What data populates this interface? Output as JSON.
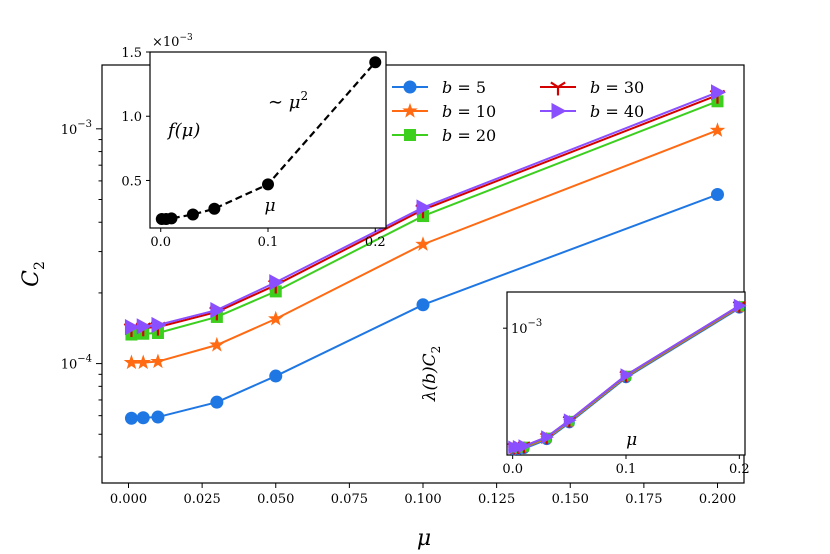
{
  "colors": {
    "b5": "#1f77e4",
    "b10": "#ff6a13",
    "b20": "#3ccf1e",
    "b30": "#d40000",
    "b40": "#8a4fff",
    "inset_curve": "#000000"
  },
  "chart_data": [
    {
      "type": "line",
      "id": "main",
      "yscale": "log",
      "xlabel": "μ",
      "ylabel": "C",
      "ylabel_sub": "2",
      "xlim": [
        -0.009,
        0.209
      ],
      "ylim": [
        3.1e-05,
        0.00187
      ],
      "xticks": [
        0.0,
        0.025,
        0.05,
        0.075,
        0.1,
        0.125,
        0.15,
        0.175,
        0.2
      ],
      "xtick_labels": [
        "0.000",
        "0.025",
        "0.050",
        "0.075",
        "0.100",
        "0.125",
        "0.150",
        "0.175",
        "0.200"
      ],
      "yticks": [
        {
          "value": 0.0001,
          "base": "10",
          "exp": "−4"
        },
        {
          "value": 0.001,
          "base": "10",
          "exp": "−3"
        }
      ],
      "x": [
        0.001,
        0.005,
        0.01,
        0.03,
        0.05,
        0.1,
        0.2
      ],
      "series": [
        {
          "key": "b5",
          "name": "b = 5",
          "label_var": "b",
          "label_val": "= 5",
          "marker": "circle",
          "values": [
            5.85e-05,
            5.88e-05,
            5.92e-05,
            6.85e-05,
            8.85e-05,
            0.000178,
            0.000525
          ]
        },
        {
          "key": "b10",
          "name": "b = 10",
          "label_var": "b",
          "label_val": "= 10",
          "marker": "star",
          "values": [
            0.000101,
            0.000101,
            0.000102,
            0.00012,
            0.000155,
            0.000322,
            0.000985
          ]
        },
        {
          "key": "b20",
          "name": "b = 20",
          "label_var": "b",
          "label_val": "= 20",
          "marker": "square",
          "values": [
            0.000133,
            0.000134,
            0.000135,
            0.000158,
            0.000203,
            0.000425,
            0.00131
          ]
        },
        {
          "key": "b30",
          "name": "b = 30",
          "label_var": "b",
          "label_val": "= 30",
          "marker": "tri_down",
          "values": [
            0.000141,
            0.000142,
            0.000143,
            0.000166,
            0.000216,
            0.000452,
            0.00139
          ]
        },
        {
          "key": "b40",
          "name": "b = 40",
          "label_var": "b",
          "label_val": "= 40",
          "marker": "triangle_right",
          "values": [
            0.000143,
            0.000144,
            0.000146,
            0.000169,
            0.000222,
            0.000462,
            0.00143
          ]
        }
      ],
      "legend": "upper-left, two columns"
    },
    {
      "type": "line",
      "id": "inset_top",
      "title_multiplier": "×10",
      "title_multiplier_exp": "−3",
      "xlim": [
        -0.01,
        0.21
      ],
      "ylim": [
        0.13,
        1.5
      ],
      "xticks": [
        0.0,
        0.1,
        0.2
      ],
      "xtick_labels": [
        "0.0",
        "0.1",
        "0.2"
      ],
      "yticks": [
        0.5,
        1.0,
        1.5
      ],
      "ytick_labels": [
        "0.5",
        "1.0",
        "1.5"
      ],
      "x": [
        0.001,
        0.005,
        0.01,
        0.03,
        0.05,
        0.1,
        0.2
      ],
      "values": [
        0.2,
        0.2,
        0.205,
        0.235,
        0.28,
        0.47,
        1.42
      ],
      "label_f": "f(μ)",
      "annotation": "∼ μ",
      "annotation_exp": "2",
      "xlabel": "μ"
    },
    {
      "type": "line",
      "id": "inset_bottom",
      "yscale": "log",
      "xlim": [
        -0.005,
        0.205
      ],
      "xticks": [
        0.0,
        0.1,
        0.2
      ],
      "xtick_labels": [
        "0.0",
        "0.1",
        "0.2"
      ],
      "ytick": {
        "base": "10",
        "exp": "−3"
      },
      "ylabel": "λ(b)C",
      "ylabel_sub": "2",
      "xlabel": "μ",
      "x": [
        0.001,
        0.005,
        0.01,
        0.03,
        0.05,
        0.1,
        0.2
      ],
      "series_values": [
        0.000143,
        0.000144,
        0.000146,
        0.000169,
        0.000222,
        0.000462,
        0.00143
      ]
    }
  ]
}
